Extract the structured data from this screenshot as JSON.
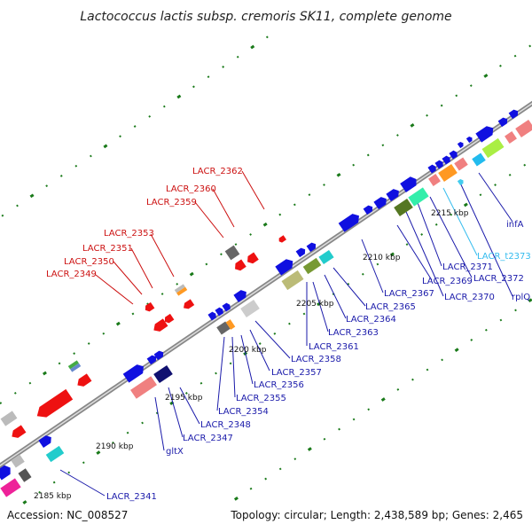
{
  "title": "Lactococcus lactis subsp. cremoris SK11, complete genome",
  "footer": {
    "accession": "Accession: NC_008527",
    "topology": "Topology: circular; Length: 2,438,589 bp; Genes: 2,465"
  },
  "ticks": [
    "2185 kbp",
    "2190 kbp",
    "2195 kbp",
    "2200 kbp",
    "2205 kbp",
    "2210 kbp",
    "2215 kbp"
  ],
  "labels_red": [
    "LACR_2349",
    "LACR_2350",
    "LACR_2351",
    "LACR_2353",
    "LACR_2359",
    "LACR_2360",
    "LACR_2362"
  ],
  "labels_blue": [
    "LACR_2341",
    "gltX",
    "LACR_2347",
    "LACR_2348",
    "LACR_2354",
    "LACR_2355",
    "LACR_2356",
    "LACR_2357",
    "LACR_2358",
    "LACR_2361",
    "LACR_2363",
    "LACR_2364",
    "LACR_2365",
    "LACR_2367",
    "LACR_2369",
    "LACR_2370",
    "LACR_2371",
    "LACR_2372",
    "rplQ",
    "infA"
  ],
  "labels_cyan": [
    "LACR_t2373"
  ],
  "colors": {
    "forward": "#1010e0",
    "reverse": "#ee1111",
    "backbone": "#999999",
    "tick": "#1a7a1a",
    "label_blue": "#1a1aaa",
    "label_red": "#cc1111",
    "label_cyan": "#33bbee"
  }
}
